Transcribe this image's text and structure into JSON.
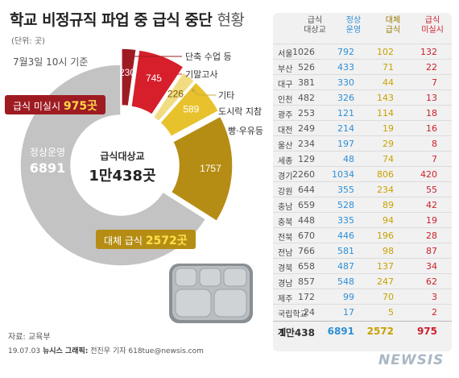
{
  "title_main": "학교 비정규직 파업 중 급식 중단",
  "title_tail": "현황",
  "unit": "(단위: 곳)",
  "as_of": "7월3일 10시 기준",
  "source": "자료: 교육부",
  "credit_date": "19.07.03",
  "credit_label": "뉴시스 그래픽:",
  "credit_author": "전진우 기자 618tue@newsis.com",
  "watermark": "NEWSIS",
  "colors": {
    "gray": "#c3c3c3",
    "dark_red": "#9e1b22",
    "red": "#d61f2b",
    "pale_yellow": "#f2dc82",
    "yellow": "#e8c22c",
    "gold": "#b68d14",
    "blue": "#2e8fd6"
  },
  "callouts": {
    "center_label": "급식대상교",
    "center_value": "1만438곳",
    "normal_label": "정상운영",
    "normal_value": "6891",
    "missing_label": "급식 미실시",
    "missing_value": "975곳",
    "substitute_label": "대체 급식",
    "substitute_value": "2572곳"
  },
  "chart_data": [
    {
      "type": "pie",
      "title": "",
      "labels": [
        "단축 수업 등",
        "기말고사",
        "기타",
        "도시락 지참",
        "빵·우유등",
        "정상운영"
      ],
      "values": [
        230,
        745,
        226,
        589,
        1757,
        6891
      ],
      "slice_labels": [
        "230",
        "745",
        "226",
        "589",
        "1757",
        ""
      ],
      "groups": {
        "급식 미실시": 975,
        "대체 급식": 2572,
        "정상운영": 6891,
        "급식대상교": 10438
      }
    },
    {
      "type": "table",
      "columns": [
        "",
        "급식\n대상교",
        "정상\n운영",
        "대체\n급식",
        "급식\n미실시"
      ],
      "rows": [
        [
          "서울",
          "1026",
          "792",
          "102",
          "132"
        ],
        [
          "부산",
          "526",
          "433",
          "71",
          "22"
        ],
        [
          "대구",
          "381",
          "330",
          "44",
          "7"
        ],
        [
          "인천",
          "482",
          "326",
          "143",
          "13"
        ],
        [
          "광주",
          "253",
          "121",
          "114",
          "18"
        ],
        [
          "대전",
          "249",
          "214",
          "19",
          "16"
        ],
        [
          "울산",
          "234",
          "197",
          "29",
          "8"
        ],
        [
          "세종",
          "129",
          "48",
          "74",
          "7"
        ],
        [
          "경기",
          "2260",
          "1034",
          "806",
          "420"
        ],
        [
          "강원",
          "644",
          "355",
          "234",
          "55"
        ],
        [
          "충남",
          "659",
          "528",
          "89",
          "42"
        ],
        [
          "충북",
          "448",
          "335",
          "94",
          "19"
        ],
        [
          "전북",
          "670",
          "446",
          "196",
          "28"
        ],
        [
          "전남",
          "766",
          "581",
          "98",
          "87"
        ],
        [
          "경북",
          "658",
          "487",
          "137",
          "34"
        ],
        [
          "경남",
          "857",
          "548",
          "247",
          "62"
        ],
        [
          "제주",
          "172",
          "99",
          "70",
          "3"
        ],
        [
          "국립학교",
          "24",
          "17",
          "5",
          "2"
        ]
      ],
      "total": [
        "계",
        "1만438",
        "6891",
        "2572",
        "975"
      ]
    }
  ]
}
